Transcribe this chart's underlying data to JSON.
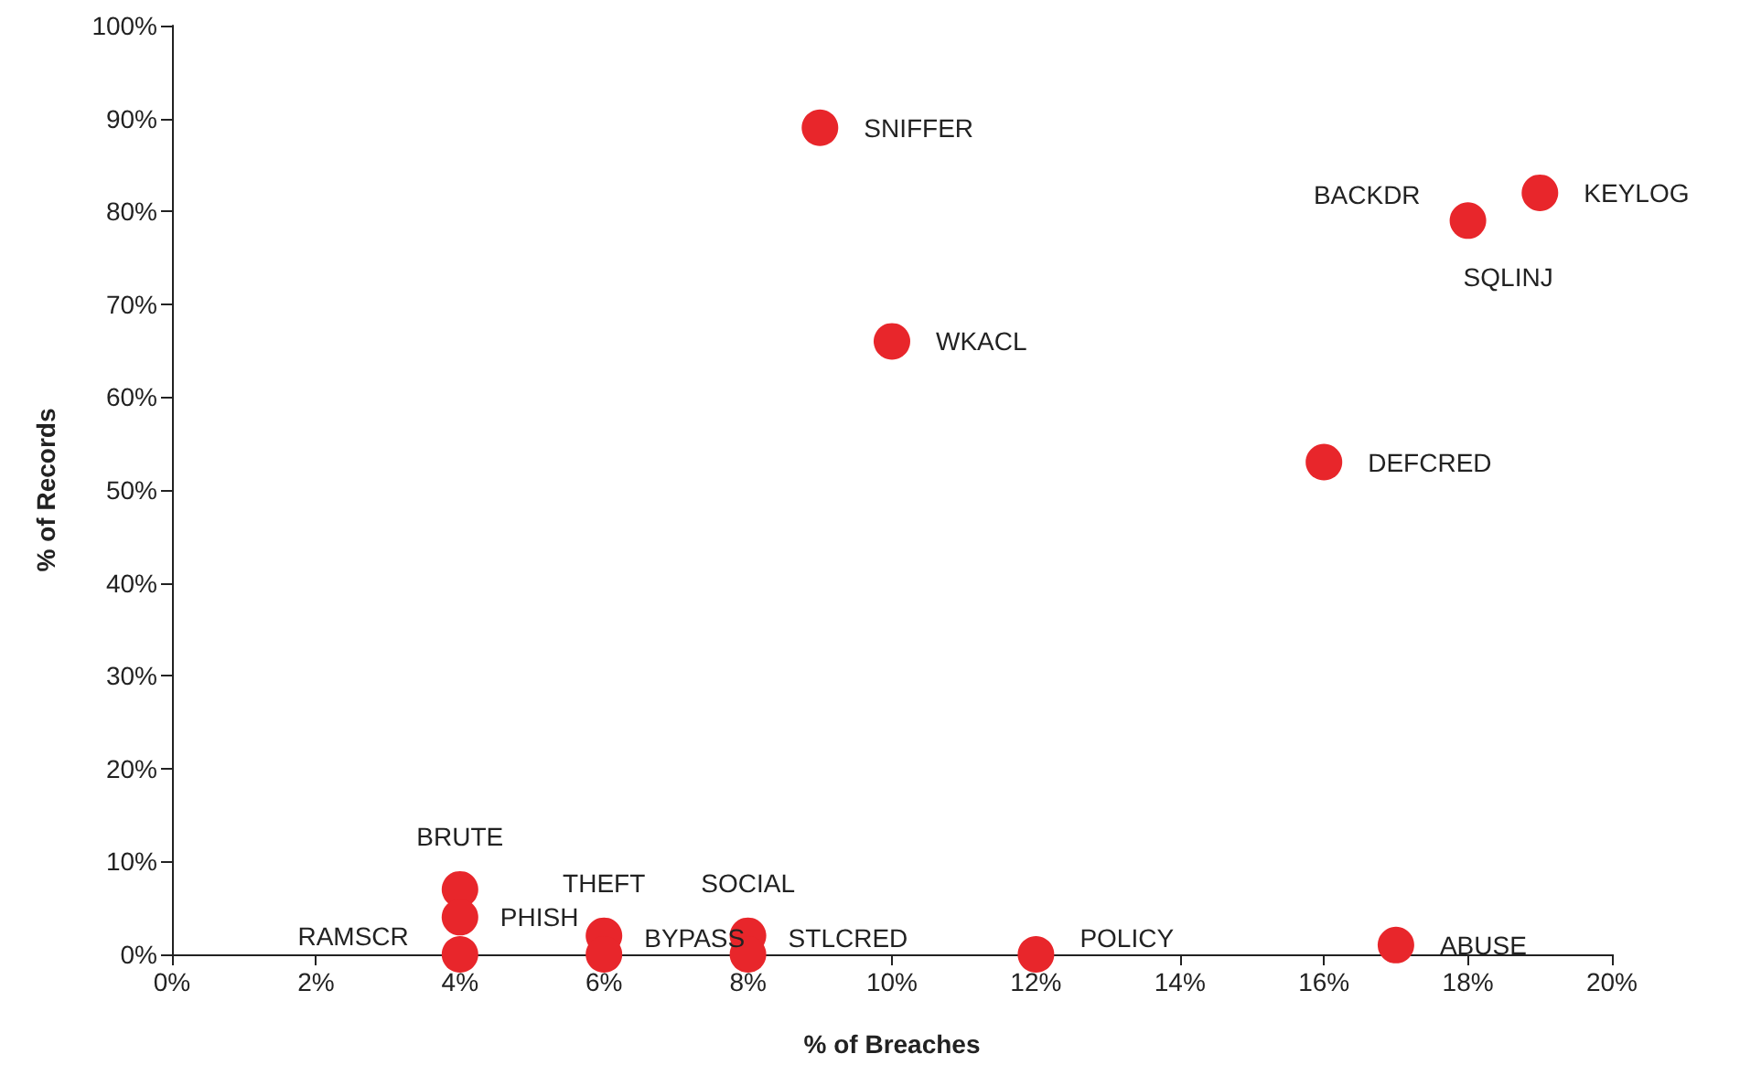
{
  "chart_data": {
    "type": "scatter",
    "xlabel": "% of Breaches",
    "ylabel": "% of Records",
    "x": [
      9,
      10,
      16,
      18,
      19,
      17,
      12,
      4,
      4,
      4,
      6,
      6,
      8,
      8
    ],
    "series": [
      {
        "color": "#e8262b",
        "values": [
          89,
          66,
          53,
          79,
          82,
          1,
          0,
          7,
          4,
          0,
          2,
          0,
          2,
          0
        ]
      }
    ],
    "annotations": [
      {
        "text": "SNIFFER",
        "x": 9,
        "y": 89
      },
      {
        "text": "WKACL",
        "x": 10,
        "y": 66
      },
      {
        "text": "DEFCRED",
        "x": 16,
        "y": 53
      },
      {
        "text": "BACKDR",
        "x": 18,
        "y": 79
      },
      {
        "text": "SQLINJ",
        "x": 18,
        "y": 79
      },
      {
        "text": "KEYLOG",
        "x": 19,
        "y": 82
      },
      {
        "text": "ABUSE",
        "x": 17,
        "y": 1
      },
      {
        "text": "POLICY",
        "x": 12,
        "y": 0
      },
      {
        "text": "BRUTE",
        "x": 4,
        "y": 7
      },
      {
        "text": "PHISH",
        "x": 4,
        "y": 4
      },
      {
        "text": "RAMSCR",
        "x": 4,
        "y": 0
      },
      {
        "text": "THEFT",
        "x": 6,
        "y": 2
      },
      {
        "text": "BYPASS",
        "x": 6,
        "y": 0
      },
      {
        "text": "SOCIAL",
        "x": 8,
        "y": 2
      },
      {
        "text": "STLCRED",
        "x": 8,
        "y": 0
      }
    ],
    "xlim": [
      0,
      20
    ],
    "xticks": [
      {
        "value": 0,
        "label": "0%"
      },
      {
        "value": 2,
        "label": "2%"
      },
      {
        "value": 4,
        "label": "4%"
      },
      {
        "value": 6,
        "label": "6%"
      },
      {
        "value": 8,
        "label": "8%"
      },
      {
        "value": 10,
        "label": "10%"
      },
      {
        "value": 12,
        "label": "12%"
      },
      {
        "value": 14,
        "label": "14%"
      },
      {
        "value": 16,
        "label": "16%"
      },
      {
        "value": 18,
        "label": "18%"
      },
      {
        "value": 20,
        "label": "20%"
      }
    ],
    "ylim": [
      0,
      100
    ],
    "yticks": [
      {
        "value": 0,
        "label": "0%"
      },
      {
        "value": 10,
        "label": "10%"
      },
      {
        "value": 20,
        "label": "20%"
      },
      {
        "value": 30,
        "label": "30%"
      },
      {
        "value": 40,
        "label": "40%"
      },
      {
        "value": 50,
        "label": "50%"
      },
      {
        "value": 60,
        "label": "60%"
      },
      {
        "value": 70,
        "label": "70%"
      },
      {
        "value": 80,
        "label": "80%"
      },
      {
        "value": 90,
        "label": "90%"
      },
      {
        "value": 100,
        "label": "100%"
      }
    ],
    "grid": false,
    "marker": "circle"
  }
}
